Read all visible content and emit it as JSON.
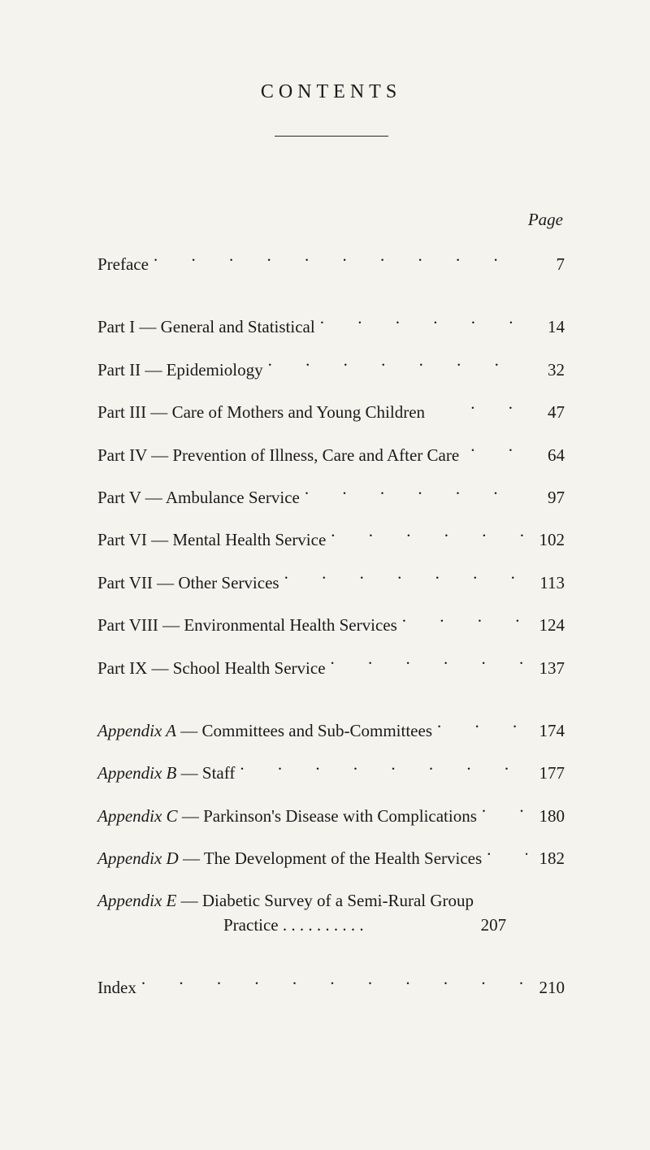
{
  "title": "CONTENTS",
  "page_header": "Page",
  "sections": [
    {
      "entries": [
        {
          "label_prefix": "",
          "label": "Preface",
          "dots": ". .       . .       . .       . .       . .       . .       . .       . .",
          "page": "7"
        }
      ]
    },
    {
      "entries": [
        {
          "label_prefix": "Part     I — ",
          "label": "General and Statistical",
          "dots": ". .       . .       . .       . .",
          "page": "14"
        },
        {
          "label_prefix": "Part    II — ",
          "label": "Epidemiology",
          "dots": ". .       . .       . .       . .       . .",
          "page": "32"
        },
        {
          "label_prefix": "Part   III — ",
          "label": "Care of Mothers and Young Children",
          "dots": "       . .",
          "page": "47"
        },
        {
          "label_prefix": "Part   IV — ",
          "label": "Prevention of Illness, Care and After Care",
          "dots": ". .",
          "page": "64"
        },
        {
          "label_prefix": "Part    V — ",
          "label": "Ambulance Service",
          "dots": "       . .       . .       . .       . .",
          "page": "97"
        },
        {
          "label_prefix": "Part   VI — ",
          "label": "Mental Health Service",
          "dots": "       . .       . .       . .",
          "page": "102"
        },
        {
          "label_prefix": "Part  VII — ",
          "label": "Other Services",
          "dots": ". .       . .       . .       . .       . .",
          "page": "113"
        },
        {
          "label_prefix": "Part VIII — ",
          "label": "Environmental Health Services",
          "dots": "       . .       . .",
          "page": "124"
        },
        {
          "label_prefix": "Part   IX — ",
          "label": "School Health Service",
          "dots": ". .       . .       . .       . .",
          "page": "137"
        }
      ]
    },
    {
      "entries": [
        {
          "label_prefix_italic": "Appendix A",
          "label": " — Committees and Sub-Committees",
          "dots": ". .       . .",
          "page": "174"
        },
        {
          "label_prefix_italic": "Appendix B",
          "label": " — Staff",
          "dots": ". .       . .       . .       . .       . .       . .",
          "page": "177"
        },
        {
          "label_prefix_italic": "Appendix C",
          "label": " — Parkinson's Disease with Complications",
          "dots": ". .",
          "page": "180"
        },
        {
          "label_prefix_italic": "Appendix D",
          "label": " — The Development of the Health Services",
          "dots": ". .",
          "page": "182"
        },
        {
          "label_prefix_italic": "Appendix E",
          "label": " — Diabetic  Survey  of  a  Semi-Rural  Group",
          "label2": "Practice       . .       . .       . .       . .       . .",
          "page": "207"
        }
      ]
    },
    {
      "entries": [
        {
          "label_prefix": "",
          "label": "Index",
          "dots": ". .       . .       . .       . .       . .       . .       . .       . .",
          "page": "210"
        }
      ]
    }
  ],
  "colors": {
    "background": "#f5f3ed",
    "text": "#1a1a1a"
  }
}
